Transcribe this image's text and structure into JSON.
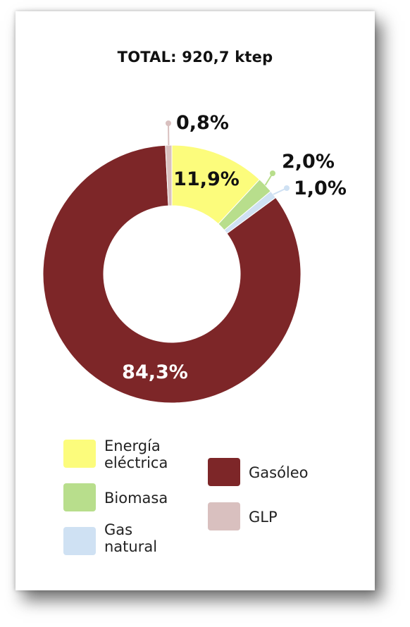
{
  "chart_data": {
    "type": "pie",
    "title": "TOTAL: 920,7 ktep",
    "slices": [
      {
        "label": "Energía\neléctrica",
        "value": 11.9,
        "display": "11,9%",
        "color": "#fcfc7c"
      },
      {
        "label": "Biomasa",
        "value": 2.0,
        "display": "2,0%",
        "color": "#b8de8c"
      },
      {
        "label": "Gas\nnatural",
        "value": 1.0,
        "display": "1,0%",
        "color": "#cfe1f3"
      },
      {
        "label": "Gasóleo",
        "value": 84.3,
        "display": "84,3%",
        "color": "#7d2628"
      },
      {
        "label": "GLP",
        "value": 0.8,
        "display": "0,8%",
        "color": "#d9c0bf"
      }
    ],
    "legend_placement": "bottom"
  }
}
